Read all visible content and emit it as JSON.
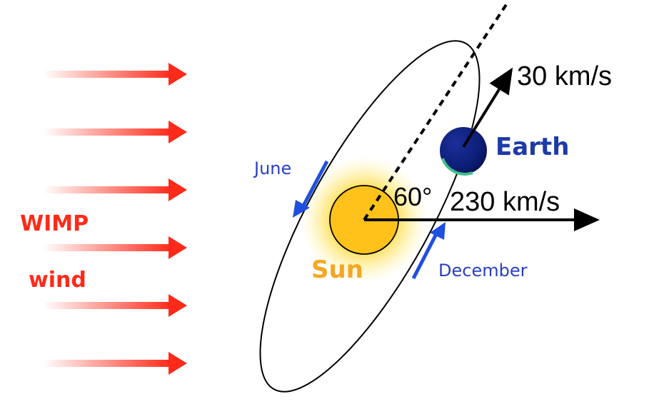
{
  "labels": {
    "wimp": "WIMP",
    "wind": "wind",
    "sun": "Sun",
    "earth": "Earth",
    "june": "June",
    "december": "December",
    "angle": "60°",
    "earth_speed": "30 km/s",
    "sun_speed": "230 km/s"
  },
  "colors": {
    "wind": "#ff2a1a",
    "sun_label": "#f5a623",
    "earth_label": "#1e3aa8",
    "month_label": "#2a3fc4",
    "month_arrow": "#1f4fe0",
    "ink": "#000000"
  }
}
